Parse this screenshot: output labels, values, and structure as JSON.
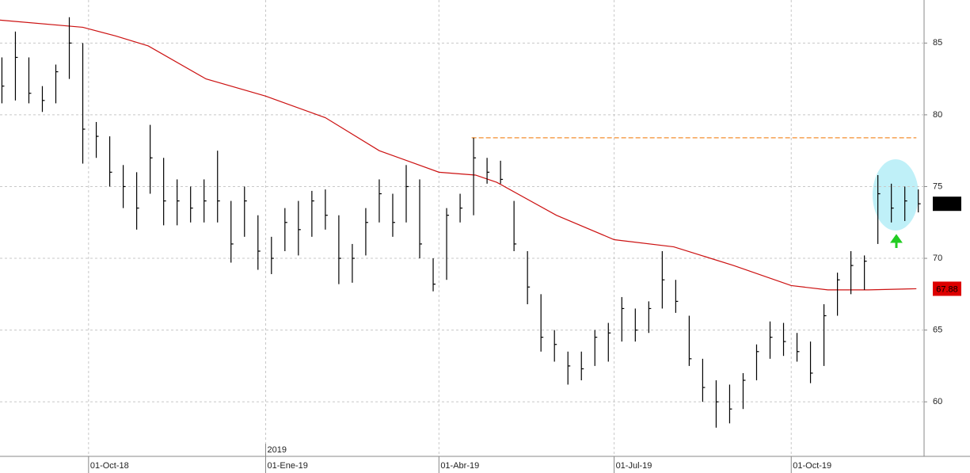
{
  "chart_data": {
    "type": "ohlc",
    "xlim": [
      "2018-08-16",
      "2019-12-09"
    ],
    "ylim": [
      56.2,
      88
    ],
    "yticks": [
      60,
      65,
      70,
      75,
      80,
      85
    ],
    "xticks": [
      {
        "value": "2018-10-01",
        "label": "01-Oct-18"
      },
      {
        "value": "2019-01-01",
        "label": "01-Ene-19"
      },
      {
        "value": "2019-04-01",
        "label": "01-Abr-19"
      },
      {
        "value": "2019-07-01",
        "label": "01-Jul-19"
      },
      {
        "value": "2019-10-01",
        "label": "01-Oct-19"
      }
    ],
    "year_marks": [
      {
        "value": "2019-01-01",
        "label": "2019"
      }
    ],
    "grid": true,
    "ohlc": {
      "color": "#000000",
      "x": [
        "2018-08-17",
        "2018-08-24",
        "2018-08-31",
        "2018-09-07",
        "2018-09-14",
        "2018-09-21",
        "2018-09-28",
        "2018-10-05",
        "2018-10-12",
        "2018-10-19",
        "2018-10-26",
        "2018-11-02",
        "2018-11-09",
        "2018-11-16",
        "2018-11-23",
        "2018-11-30",
        "2018-12-07",
        "2018-12-14",
        "2018-12-21",
        "2018-12-28",
        "2019-01-04",
        "2019-01-11",
        "2019-01-18",
        "2019-01-25",
        "2019-02-01",
        "2019-02-08",
        "2019-02-15",
        "2019-02-22",
        "2019-03-01",
        "2019-03-08",
        "2019-03-15",
        "2019-03-22",
        "2019-03-29",
        "2019-04-05",
        "2019-04-12",
        "2019-04-19",
        "2019-04-26",
        "2019-05-03",
        "2019-05-10",
        "2019-05-17",
        "2019-05-24",
        "2019-05-31",
        "2019-06-07",
        "2019-06-14",
        "2019-06-21",
        "2019-06-28",
        "2019-07-05",
        "2019-07-12",
        "2019-07-19",
        "2019-07-26",
        "2019-08-02",
        "2019-08-09",
        "2019-08-16",
        "2019-08-23",
        "2019-08-30",
        "2019-09-06",
        "2019-09-13",
        "2019-09-20",
        "2019-09-27",
        "2019-10-04",
        "2019-10-11",
        "2019-10-18",
        "2019-10-25",
        "2019-11-01",
        "2019-11-08",
        "2019-11-15",
        "2019-11-22",
        "2019-11-29",
        "2019-12-06"
      ],
      "high": [
        84,
        85.8,
        84,
        82,
        83.5,
        86.8,
        85,
        79.5,
        78.5,
        76.5,
        76,
        79.3,
        77,
        75.5,
        75,
        75.5,
        77.5,
        74,
        75,
        73,
        71.5,
        73.5,
        74,
        74.7,
        74.8,
        73,
        71,
        73.5,
        75.5,
        74.5,
        76.5,
        75.5,
        70,
        73.5,
        74.5,
        78.4,
        77,
        76.8,
        74,
        70.5,
        67.5,
        65,
        63.5,
        63.5,
        65,
        65.5,
        67.3,
        66.5,
        67,
        70.5,
        68.5,
        66,
        63,
        61.5,
        61.2,
        62,
        64,
        65.6,
        65.5,
        64.8,
        64.2,
        66.8,
        69,
        70.5,
        70.2,
        75.8,
        75.2,
        75,
        74.8
      ],
      "low": [
        80.8,
        81,
        80.8,
        80.2,
        80.8,
        82.5,
        76.6,
        77,
        75,
        73.5,
        72,
        74.5,
        72.3,
        72.3,
        72.5,
        72.5,
        72.5,
        69.7,
        71.5,
        69.2,
        68.9,
        70.5,
        70.2,
        71.5,
        72,
        68.2,
        68.3,
        70.2,
        72.5,
        71.5,
        72.5,
        70,
        67.7,
        68.5,
        72.5,
        73,
        75.2,
        75.2,
        70.5,
        66.8,
        63.5,
        62.8,
        61.2,
        61.5,
        62.5,
        62.8,
        64.2,
        64.2,
        64.8,
        66.5,
        66.2,
        62.5,
        60,
        58.2,
        58.5,
        59.5,
        61.5,
        63,
        63.2,
        62.8,
        61.3,
        62.5,
        66,
        67.5,
        67.8,
        71,
        72.5,
        72.6,
        73.2
      ],
      "close": [
        82,
        84,
        81.5,
        81,
        83,
        85,
        79,
        78.5,
        76,
        75,
        73.5,
        77,
        74,
        74,
        73.5,
        74,
        74,
        71,
        74,
        70.5,
        70,
        72.5,
        72,
        74,
        73,
        70,
        70,
        72.5,
        74.5,
        72.5,
        75,
        71,
        68.2,
        73,
        73.5,
        77,
        76,
        75.5,
        71,
        68,
        64.5,
        64,
        62.5,
        62.3,
        64.5,
        64.8,
        66.5,
        65,
        66.5,
        68.5,
        67,
        63,
        61,
        60,
        59.5,
        61.5,
        63.5,
        64.5,
        64.2,
        63.5,
        62,
        66,
        68.5,
        69.5,
        69.8,
        74.5,
        73.5,
        74,
        73.8
      ]
    },
    "ma": {
      "color": "#cc1111",
      "x": [
        "2018-08-16",
        "2018-09-28",
        "2018-10-15",
        "2018-11-01",
        "2018-12-01",
        "2019-01-01",
        "2019-02-01",
        "2019-03-01",
        "2019-04-01",
        "2019-04-20",
        "2019-05-01",
        "2019-06-01",
        "2019-07-01",
        "2019-08-01",
        "2019-09-01",
        "2019-10-01",
        "2019-10-20",
        "2019-11-10",
        "2019-12-05"
      ],
      "values": [
        86.6,
        86.1,
        85.5,
        84.8,
        82.5,
        81.3,
        79.8,
        77.5,
        76,
        75.8,
        75.3,
        73,
        71.3,
        70.8,
        69.5,
        68.1,
        67.8,
        67.8,
        67.88
      ]
    },
    "ma_value": 67.88,
    "level": {
      "value": 78.4,
      "x": [
        "2019-04-18",
        "2019-12-05"
      ],
      "color": "#f5a050"
    }
  }
}
